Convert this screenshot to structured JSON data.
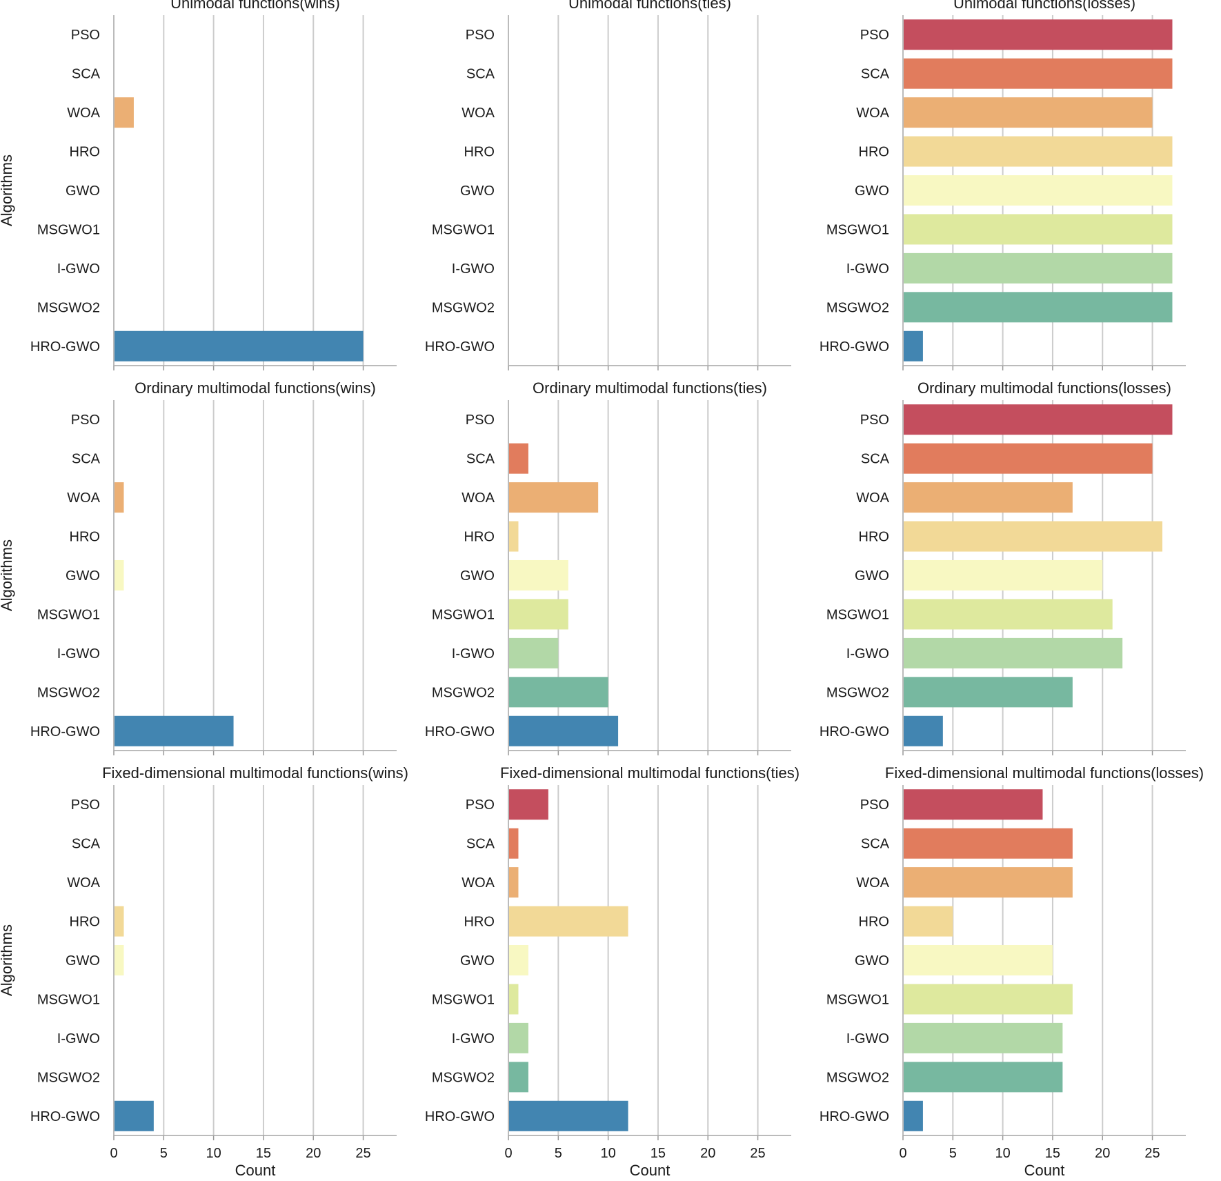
{
  "chart_data": {
    "type": "bar",
    "orientation": "horizontal",
    "ylabel": "Algorithms",
    "xlabel": "Count",
    "categories": [
      "PSO",
      "SCA",
      "WOA",
      "HRO",
      "GWO",
      "MSGWO1",
      "I-GWO",
      "MSGWO2",
      "HRO-GWO"
    ],
    "xticks": [
      0,
      5,
      10,
      15,
      20,
      25
    ],
    "xlim": [
      0,
      28.35
    ],
    "grid": true,
    "palette": [
      "#c44e5e",
      "#e17c5d",
      "#ebaf74",
      "#f2d997",
      "#f8f8c2",
      "#dee99e",
      "#b2d8a7",
      "#77b8a0",
      "#4285b1"
    ],
    "panels": [
      {
        "title": "Unimodal functions(wins)",
        "values": [
          0,
          0,
          2,
          0,
          0,
          0,
          0,
          0,
          25
        ]
      },
      {
        "title": "Unimodal functions(ties)",
        "values": [
          0,
          0,
          0,
          0,
          0,
          0,
          0,
          0,
          0
        ]
      },
      {
        "title": "Unimodal functions(losses)",
        "values": [
          27,
          27,
          25,
          27,
          27,
          27,
          27,
          27,
          2
        ]
      },
      {
        "title": "Ordinary multimodal functions(wins)",
        "values": [
          0,
          0,
          1,
          0,
          1,
          0,
          0,
          0,
          12
        ]
      },
      {
        "title": "Ordinary multimodal functions(ties)",
        "values": [
          0,
          2,
          9,
          1,
          6,
          6,
          5,
          10,
          11
        ]
      },
      {
        "title": "Ordinary multimodal functions(losses)",
        "values": [
          27,
          25,
          17,
          26,
          20,
          21,
          22,
          17,
          4
        ]
      },
      {
        "title": "Fixed-dimensional multimodal functions(wins)",
        "values": [
          0,
          0,
          0,
          1,
          1,
          0,
          0,
          0,
          4
        ]
      },
      {
        "title": "Fixed-dimensional multimodal functions(ties)",
        "values": [
          4,
          1,
          1,
          12,
          2,
          1,
          2,
          2,
          12
        ]
      },
      {
        "title": "Fixed-dimensional multimodal functions(losses)",
        "values": [
          14,
          17,
          17,
          5,
          15,
          17,
          16,
          16,
          2
        ]
      }
    ]
  }
}
